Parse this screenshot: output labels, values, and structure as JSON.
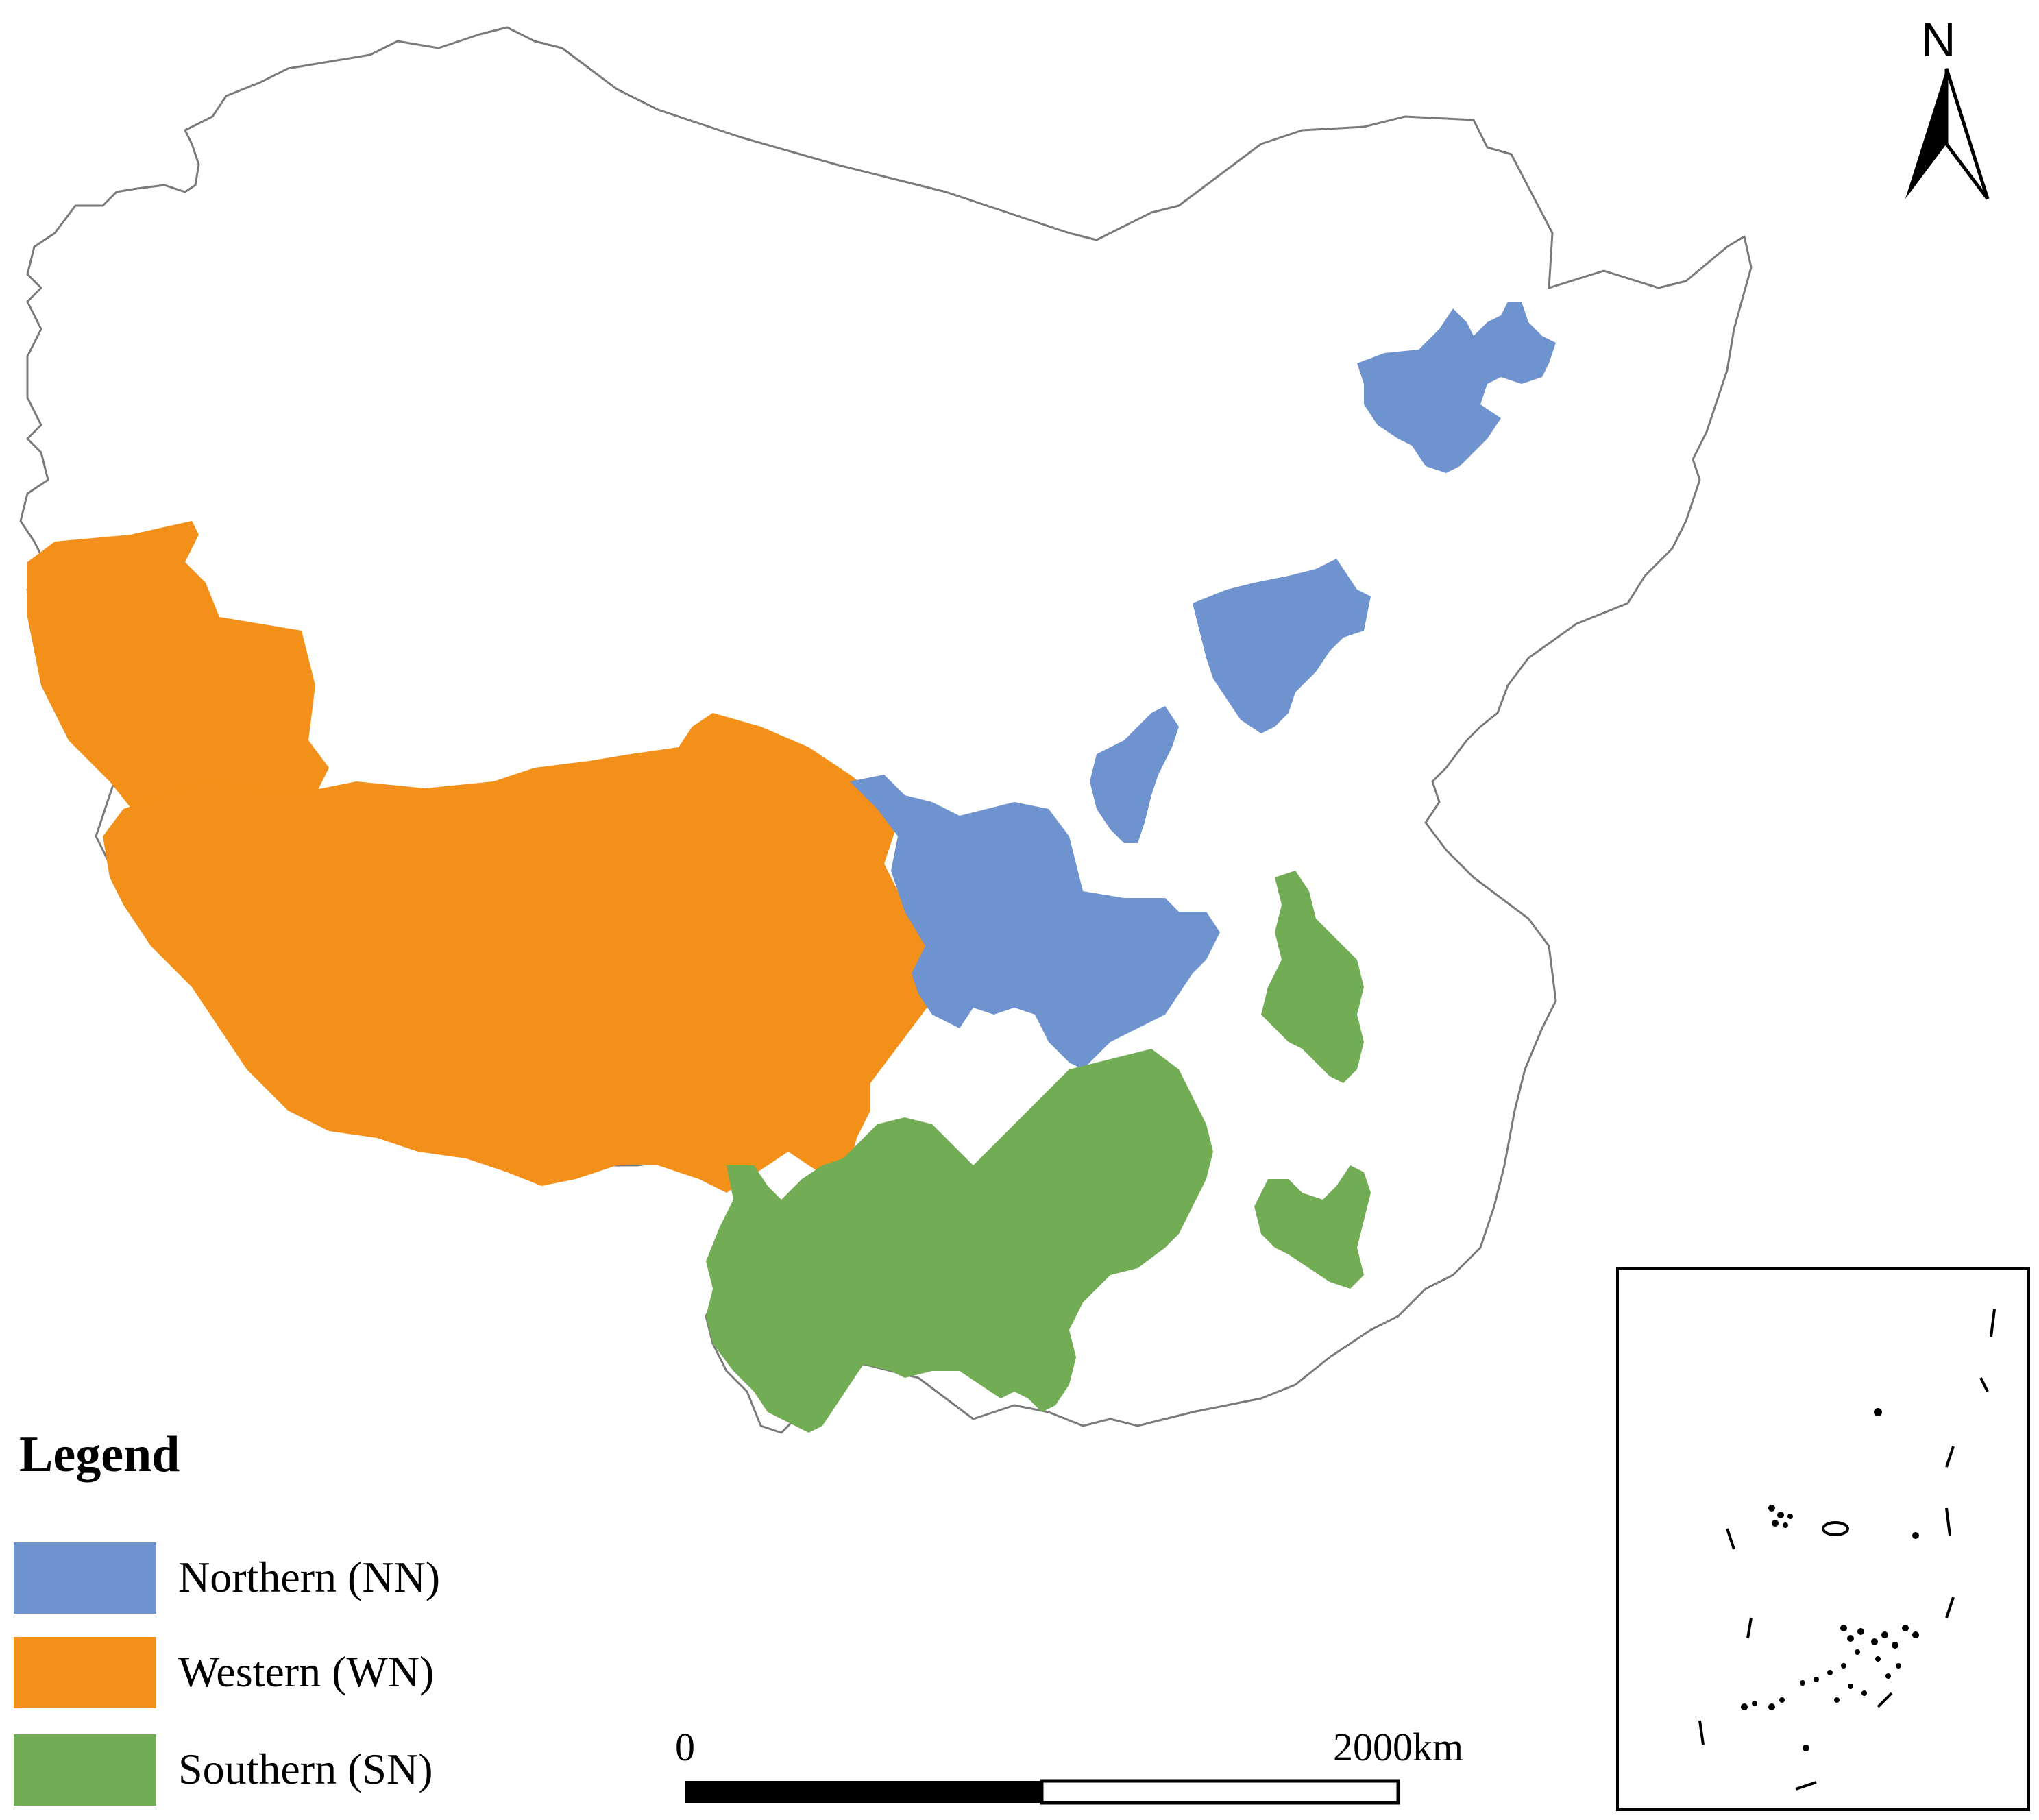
{
  "map": {
    "colors": {
      "northern": "#6f93cf",
      "western": "#f39019",
      "southern": "#72ad55",
      "boundary": "#7a7a7a",
      "background": "#ffffff"
    },
    "north_arrow_label": "N",
    "inset_description_icon": "south-china-sea-inset"
  },
  "legend": {
    "title": "Legend",
    "items": [
      {
        "label": "Northern (NN)",
        "color": "#6f93cf"
      },
      {
        "label": "Western (WN)",
        "color": "#f39019"
      },
      {
        "label": "Southern (SN)",
        "color": "#72ad55"
      }
    ]
  },
  "scale_bar": {
    "start_label": "0",
    "end_label": "2000km"
  }
}
